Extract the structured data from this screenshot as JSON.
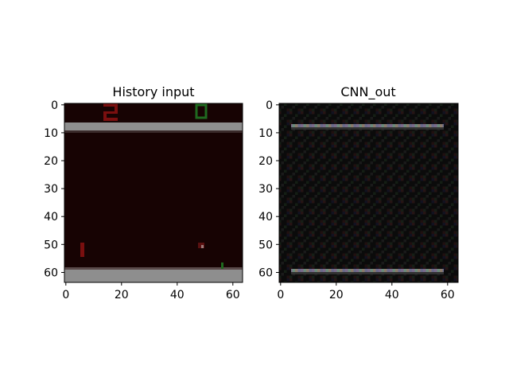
{
  "panels": [
    {
      "title": "History input",
      "x_ticks": [
        "0",
        "20",
        "40",
        "60"
      ],
      "y_ticks": [
        "0",
        "10",
        "20",
        "30",
        "40",
        "50",
        "60"
      ]
    },
    {
      "title": "CNN_out",
      "x_ticks": [
        "0",
        "20",
        "40",
        "60"
      ],
      "y_ticks": [
        "0",
        "10",
        "20",
        "30",
        "40",
        "50",
        "60"
      ]
    }
  ],
  "colors": {
    "history_background": "#170303",
    "history_bar": "#8e8e8e",
    "history_red": "#7a0f0f",
    "history_green": "#1f6a1f",
    "cnn_background": "#0b0b0b"
  }
}
